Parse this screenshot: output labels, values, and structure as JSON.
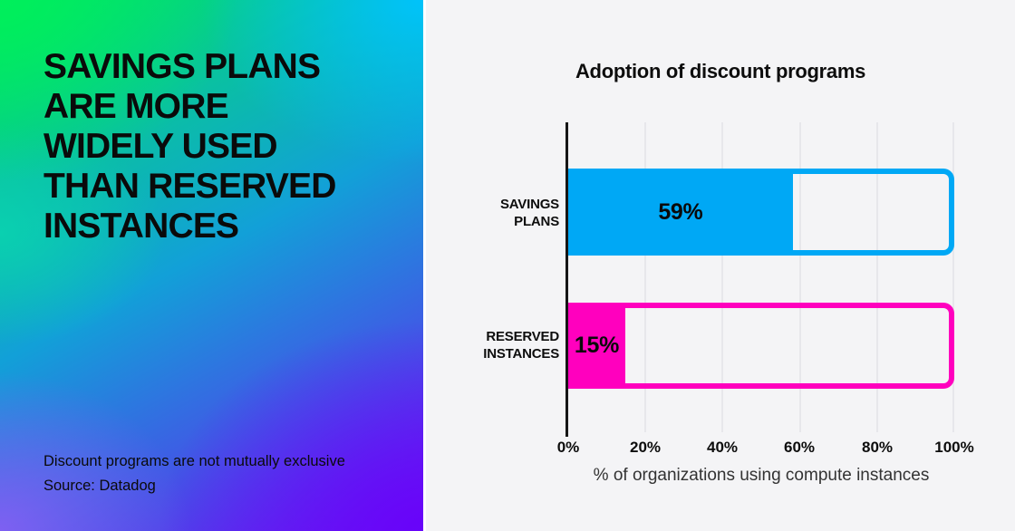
{
  "left_panel": {
    "title_lines": [
      "SAVINGS PLANS",
      "ARE MORE",
      "WIDELY USED",
      "THAN RESERVED",
      "INSTANCES"
    ],
    "footnote_line1": "Discount programs are not mutually exclusive",
    "footnote_line2": "Source: Datadog"
  },
  "chart": {
    "title": "Adoption of discount programs",
    "xlabel": "% of organizations using compute instances",
    "ticks": [
      "0%",
      "20%",
      "40%",
      "60%",
      "80%",
      "100%"
    ],
    "bars": [
      {
        "label_line1": "SAVINGS",
        "label_line2": "PLANS",
        "value": 59,
        "value_label": "59%",
        "color": "#00a8f5"
      },
      {
        "label_line1": "RESERVED",
        "label_line2": "INSTANCES",
        "value": 15,
        "value_label": "15%",
        "color": "#ff00be"
      }
    ]
  },
  "chart_data": {
    "type": "bar",
    "orientation": "horizontal",
    "title": "Adoption of discount programs",
    "categories": [
      "Savings Plans",
      "Reserved Instances"
    ],
    "values": [
      59,
      15
    ],
    "data_labels": [
      "59%",
      "15%"
    ],
    "xlabel": "% of organizations using compute instances",
    "xlim": [
      0,
      100
    ],
    "tick_labels": [
      "0%",
      "20%",
      "40%",
      "60%",
      "80%",
      "100%"
    ],
    "grid": true,
    "legend": false,
    "bar_colors": [
      "#00a8f5",
      "#ff00be"
    ],
    "track_style": "full-width outlined track to 100% with rounded right corners"
  },
  "colors": {
    "bar_blue": "#00a8f5",
    "bar_magenta": "#ff00be",
    "chart_panel_bg": "#f4f4f6",
    "gridline": "#e7e7eb",
    "axis": "#161616",
    "text": "#0d0d0d",
    "gradient_green": "#00f05a",
    "gradient_cyan": "#00c3ff",
    "gradient_teal": "#0ad4b0",
    "gradient_periwinkle": "#8460f3",
    "gradient_violet": "#6802fa"
  }
}
